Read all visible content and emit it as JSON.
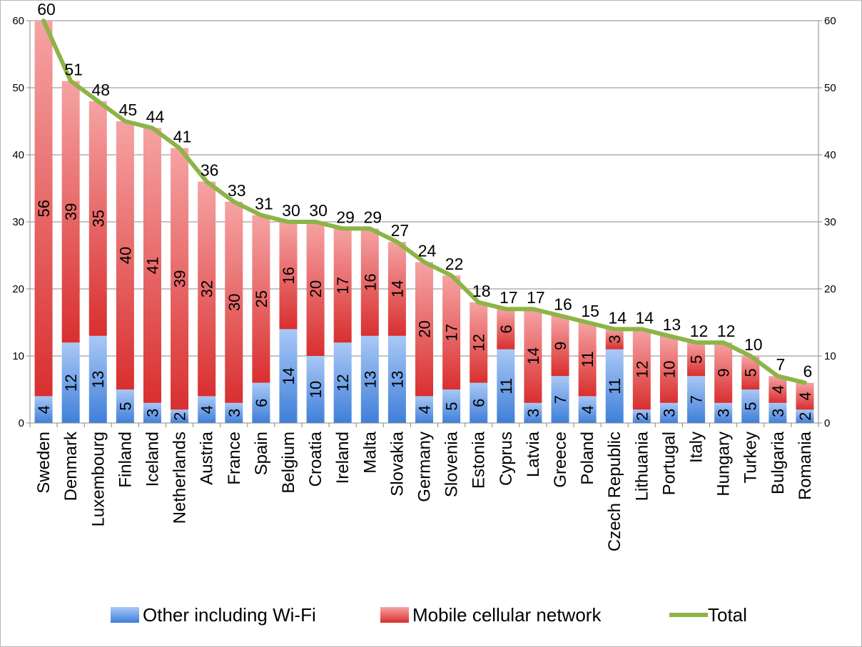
{
  "chart_data": {
    "type": "bar",
    "stacked": true,
    "categories": [
      "Sweden",
      "Denmark",
      "Luxembourg",
      "Finland",
      "Iceland",
      "Netherlands",
      "Austria",
      "France",
      "Spain",
      "Belgium",
      "Croatia",
      "Ireland",
      "Malta",
      "Slovakia",
      "Germany",
      "Slovenia",
      "Estonia",
      "Cyprus",
      "Latvia",
      "Greece",
      "Poland",
      "Czech Republic",
      "Lithuania",
      "Portugal",
      "Italy",
      "Hungary",
      "Turkey",
      "Bulgaria",
      "Romania"
    ],
    "series": [
      {
        "name": "Other including Wi-Fi",
        "type": "bar",
        "color": "#4a86e0",
        "values": [
          4,
          12,
          13,
          5,
          3,
          2,
          4,
          3,
          6,
          14,
          10,
          12,
          13,
          13,
          4,
          5,
          6,
          11,
          3,
          7,
          4,
          11,
          2,
          3,
          7,
          3,
          5,
          3,
          2
        ]
      },
      {
        "name": "Mobile cellular network",
        "type": "bar",
        "color": "#e03a3a",
        "values": [
          56,
          39,
          35,
          40,
          41,
          39,
          32,
          30,
          25,
          16,
          20,
          17,
          16,
          14,
          20,
          17,
          12,
          6,
          14,
          9,
          11,
          3,
          12,
          10,
          5,
          9,
          5,
          4,
          4
        ]
      },
      {
        "name": "Total",
        "type": "line",
        "color": "#8db446",
        "values": [
          60,
          51,
          48,
          45,
          44,
          41,
          36,
          33,
          31,
          30,
          30,
          29,
          29,
          27,
          24,
          22,
          18,
          17,
          17,
          16,
          15,
          14,
          14,
          13,
          12,
          12,
          10,
          7,
          6
        ]
      }
    ],
    "ylim": [
      0,
      60
    ],
    "yticks": [
      0,
      10,
      20,
      30,
      40,
      50,
      60
    ],
    "secondary_y_axis": true,
    "grid": true,
    "legend_position": "bottom",
    "data_labels": true
  }
}
